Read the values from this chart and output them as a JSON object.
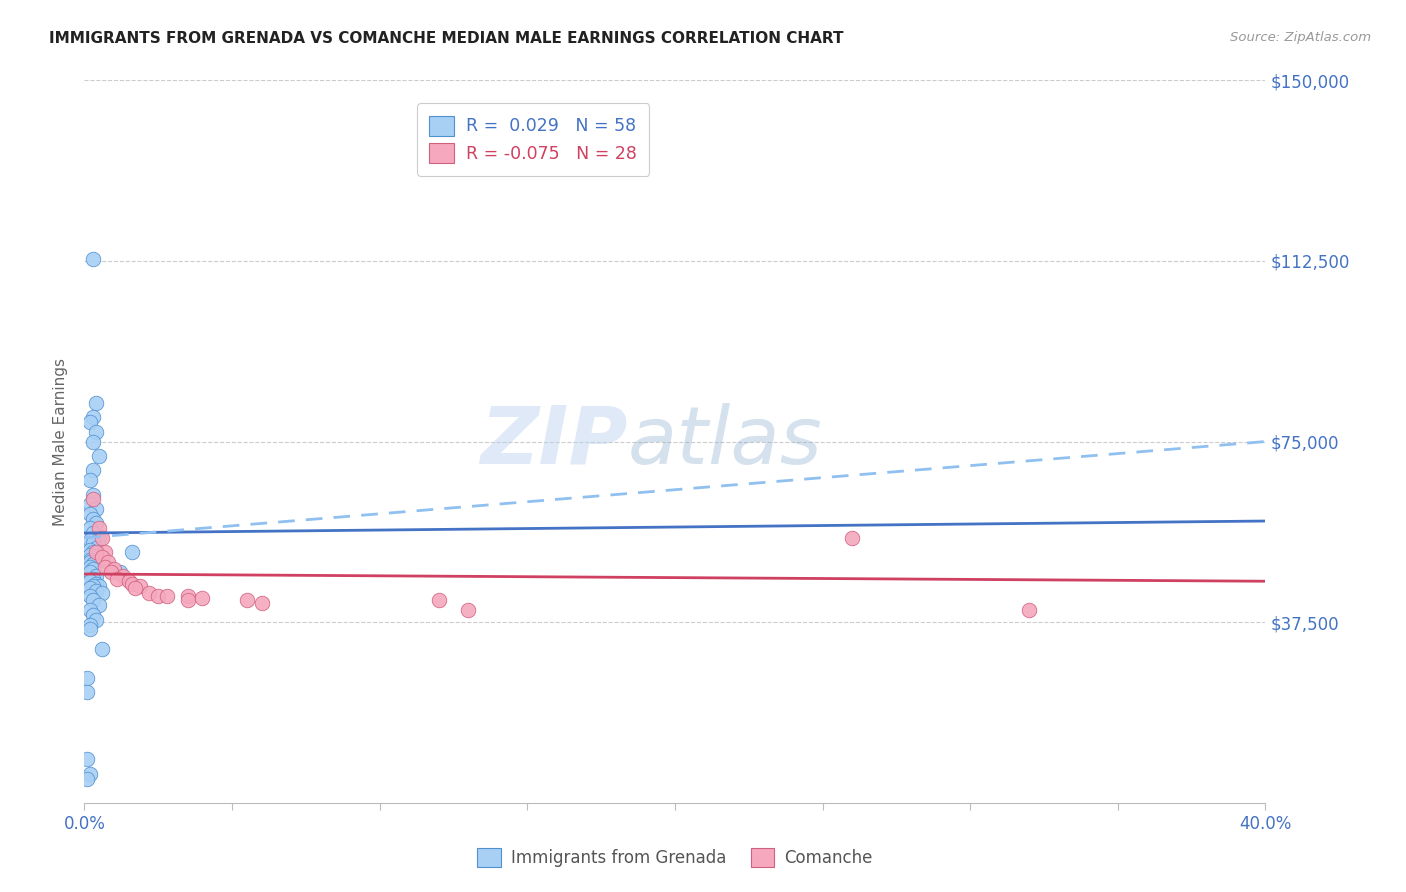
{
  "title": "IMMIGRANTS FROM GRENADA VS COMANCHE MEDIAN MALE EARNINGS CORRELATION CHART",
  "source": "Source: ZipAtlas.com",
  "ylabel": "Median Male Earnings",
  "yticks": [
    0,
    37500,
    75000,
    112500,
    150000
  ],
  "ytick_labels": [
    "",
    "$37,500",
    "$75,000",
    "$112,500",
    "$150,000"
  ],
  "xmin": 0.0,
  "xmax": 0.4,
  "ymin": 0,
  "ymax": 150000,
  "watermark_zip": "ZIP",
  "watermark_atlas": "atlas",
  "legend1_label": "Immigrants from Grenada",
  "legend2_label": "Comanche",
  "r1": " 0.029",
  "n1": "58",
  "r2": "-0.075",
  "n2": "28",
  "color_blue_fill": "#A8D0F5",
  "color_pink_fill": "#F5A8BE",
  "color_blue_edge": "#5090D0",
  "color_pink_edge": "#D06080",
  "color_blue_line": "#4472C4",
  "color_pink_line": "#D04060",
  "color_blue_dashed": "#90C0F0",
  "color_axis_labels": "#4472C4",
  "color_grid": "#cccccc",
  "color_title": "#222222",
  "color_source": "#999999",
  "scatter_blue": [
    [
      0.001,
      9000
    ],
    [
      0.002,
      6000
    ],
    [
      0.003,
      113000
    ],
    [
      0.004,
      83000
    ],
    [
      0.003,
      80000
    ],
    [
      0.002,
      79000
    ],
    [
      0.004,
      77000
    ],
    [
      0.003,
      75000
    ],
    [
      0.005,
      72000
    ],
    [
      0.003,
      69000
    ],
    [
      0.002,
      67000
    ],
    [
      0.003,
      64000
    ],
    [
      0.002,
      62000
    ],
    [
      0.004,
      61000
    ],
    [
      0.002,
      60000
    ],
    [
      0.003,
      59000
    ],
    [
      0.004,
      58000
    ],
    [
      0.002,
      57000
    ],
    [
      0.003,
      56000
    ],
    [
      0.005,
      55000
    ],
    [
      0.002,
      54500
    ],
    [
      0.003,
      54000
    ],
    [
      0.004,
      53000
    ],
    [
      0.002,
      52500
    ],
    [
      0.003,
      52000
    ],
    [
      0.002,
      51500
    ],
    [
      0.004,
      51000
    ],
    [
      0.002,
      50500
    ],
    [
      0.003,
      50000
    ],
    [
      0.002,
      50000
    ],
    [
      0.004,
      50000
    ],
    [
      0.003,
      49500
    ],
    [
      0.002,
      49000
    ],
    [
      0.003,
      48500
    ],
    [
      0.002,
      48000
    ],
    [
      0.004,
      47000
    ],
    [
      0.003,
      46500
    ],
    [
      0.002,
      46000
    ],
    [
      0.004,
      45500
    ],
    [
      0.005,
      45000
    ],
    [
      0.003,
      45000
    ],
    [
      0.002,
      44500
    ],
    [
      0.004,
      44000
    ],
    [
      0.006,
      43500
    ],
    [
      0.002,
      43000
    ],
    [
      0.003,
      42000
    ],
    [
      0.005,
      41000
    ],
    [
      0.002,
      40000
    ],
    [
      0.003,
      39000
    ],
    [
      0.004,
      38000
    ],
    [
      0.002,
      37000
    ],
    [
      0.002,
      36000
    ],
    [
      0.016,
      52000
    ],
    [
      0.012,
      48000
    ],
    [
      0.006,
      32000
    ],
    [
      0.001,
      26000
    ],
    [
      0.001,
      23000
    ],
    [
      0.001,
      5000
    ]
  ],
  "scatter_pink": [
    [
      0.003,
      63000
    ],
    [
      0.005,
      57000
    ],
    [
      0.006,
      55000
    ],
    [
      0.007,
      52000
    ],
    [
      0.004,
      52000
    ],
    [
      0.006,
      51000
    ],
    [
      0.008,
      50000
    ],
    [
      0.007,
      49000
    ],
    [
      0.01,
      48500
    ],
    [
      0.009,
      48000
    ],
    [
      0.013,
      47000
    ],
    [
      0.011,
      46500
    ],
    [
      0.015,
      46000
    ],
    [
      0.016,
      45500
    ],
    [
      0.019,
      45000
    ],
    [
      0.017,
      44500
    ],
    [
      0.022,
      43500
    ],
    [
      0.025,
      43000
    ],
    [
      0.028,
      43000
    ],
    [
      0.035,
      43000
    ],
    [
      0.035,
      42000
    ],
    [
      0.04,
      42500
    ],
    [
      0.055,
      42000
    ],
    [
      0.06,
      41500
    ],
    [
      0.12,
      42000
    ],
    [
      0.13,
      40000
    ],
    [
      0.26,
      55000
    ],
    [
      0.32,
      40000
    ]
  ],
  "blue_solid_line": [
    [
      0.0,
      56000
    ],
    [
      0.4,
      58500
    ]
  ],
  "blue_dashed_line": [
    [
      0.0,
      55000
    ],
    [
      0.4,
      75000
    ]
  ],
  "pink_solid_line": [
    [
      0.0,
      47500
    ],
    [
      0.4,
      46000
    ]
  ]
}
